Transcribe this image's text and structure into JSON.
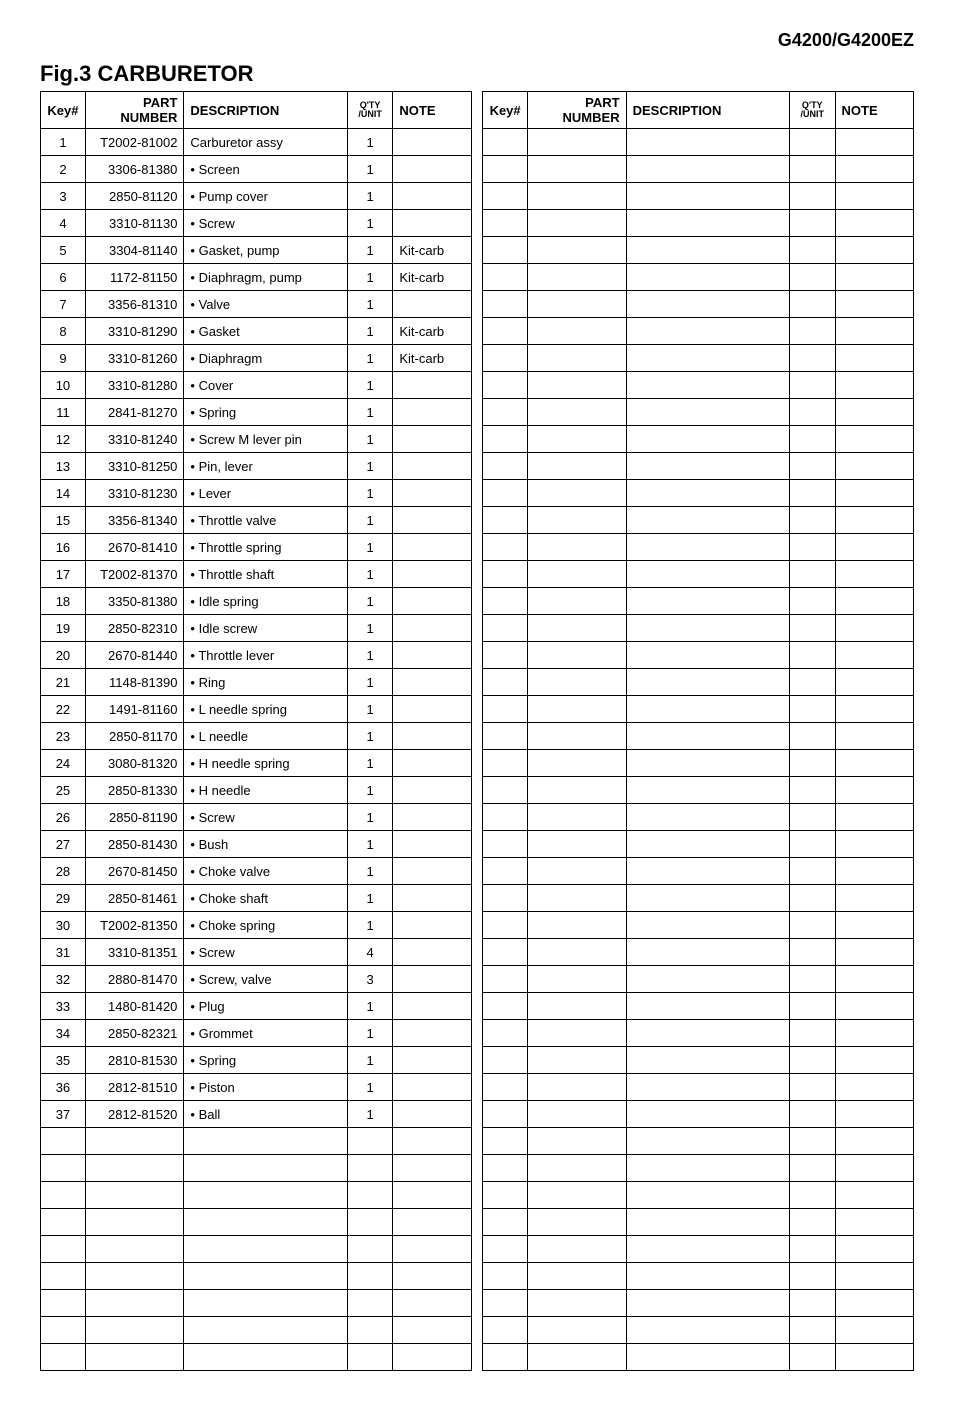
{
  "model": "G4200/G4200EZ",
  "figure_title": "Fig.3  CARBURETOR",
  "headers": {
    "key": "Key#",
    "part": "PART NUMBER",
    "desc": "DESCRIPTION",
    "qty": "Q'TY /UNIT",
    "note": "NOTE"
  },
  "rows": [
    {
      "key": "1",
      "part": "T2002-81002",
      "desc": "Carburetor assy",
      "qty": "1",
      "note": ""
    },
    {
      "key": "2",
      "part": "3306-81380",
      "desc": "• Screen",
      "qty": "1",
      "note": ""
    },
    {
      "key": "3",
      "part": "2850-81120",
      "desc": "• Pump cover",
      "qty": "1",
      "note": ""
    },
    {
      "key": "4",
      "part": "3310-81130",
      "desc": "• Screw",
      "qty": "1",
      "note": ""
    },
    {
      "key": "5",
      "part": "3304-81140",
      "desc": "• Gasket, pump",
      "qty": "1",
      "note": "Kit-carb"
    },
    {
      "key": "6",
      "part": "1172-81150",
      "desc": "• Diaphragm, pump",
      "qty": "1",
      "note": "Kit-carb"
    },
    {
      "key": "7",
      "part": "3356-81310",
      "desc": "• Valve",
      "qty": "1",
      "note": ""
    },
    {
      "key": "8",
      "part": "3310-81290",
      "desc": "• Gasket",
      "qty": "1",
      "note": "Kit-carb"
    },
    {
      "key": "9",
      "part": "3310-81260",
      "desc": "• Diaphragm",
      "qty": "1",
      "note": "Kit-carb"
    },
    {
      "key": "10",
      "part": "3310-81280",
      "desc": "• Cover",
      "qty": "1",
      "note": ""
    },
    {
      "key": "11",
      "part": "2841-81270",
      "desc": "• Spring",
      "qty": "1",
      "note": ""
    },
    {
      "key": "12",
      "part": "3310-81240",
      "desc": "• Screw M lever pin",
      "qty": "1",
      "note": ""
    },
    {
      "key": "13",
      "part": "3310-81250",
      "desc": "• Pin, lever",
      "qty": "1",
      "note": ""
    },
    {
      "key": "14",
      "part": "3310-81230",
      "desc": "• Lever",
      "qty": "1",
      "note": ""
    },
    {
      "key": "15",
      "part": "3356-81340",
      "desc": "• Throttle valve",
      "qty": "1",
      "note": ""
    },
    {
      "key": "16",
      "part": "2670-81410",
      "desc": "• Throttle spring",
      "qty": "1",
      "note": ""
    },
    {
      "key": "17",
      "part": "T2002-81370",
      "desc": "• Throttle shaft",
      "qty": "1",
      "note": ""
    },
    {
      "key": "18",
      "part": "3350-81380",
      "desc": "• Idle spring",
      "qty": "1",
      "note": ""
    },
    {
      "key": "19",
      "part": "2850-82310",
      "desc": "• Idle screw",
      "qty": "1",
      "note": ""
    },
    {
      "key": "20",
      "part": "2670-81440",
      "desc": "• Throttle lever",
      "qty": "1",
      "note": ""
    },
    {
      "key": "21",
      "part": "1148-81390",
      "desc": "• Ring",
      "qty": "1",
      "note": ""
    },
    {
      "key": "22",
      "part": "1491-81160",
      "desc": "• L needle spring",
      "qty": "1",
      "note": ""
    },
    {
      "key": "23",
      "part": "2850-81170",
      "desc": "• L needle",
      "qty": "1",
      "note": ""
    },
    {
      "key": "24",
      "part": "3080-81320",
      "desc": "• H needle spring",
      "qty": "1",
      "note": ""
    },
    {
      "key": "25",
      "part": "2850-81330",
      "desc": "• H needle",
      "qty": "1",
      "note": ""
    },
    {
      "key": "26",
      "part": "2850-81190",
      "desc": "• Screw",
      "qty": "1",
      "note": ""
    },
    {
      "key": "27",
      "part": "2850-81430",
      "desc": "• Bush",
      "qty": "1",
      "note": ""
    },
    {
      "key": "28",
      "part": "2670-81450",
      "desc": "• Choke valve",
      "qty": "1",
      "note": ""
    },
    {
      "key": "29",
      "part": "2850-81461",
      "desc": "• Choke shaft",
      "qty": "1",
      "note": ""
    },
    {
      "key": "30",
      "part": "T2002-81350",
      "desc": "• Choke spring",
      "qty": "1",
      "note": ""
    },
    {
      "key": "31",
      "part": "3310-81351",
      "desc": "• Screw",
      "qty": "4",
      "note": ""
    },
    {
      "key": "32",
      "part": "2880-81470",
      "desc": "• Screw, valve",
      "qty": "3",
      "note": ""
    },
    {
      "key": "33",
      "part": "1480-81420",
      "desc": "• Plug",
      "qty": "1",
      "note": ""
    },
    {
      "key": "34",
      "part": "2850-82321",
      "desc": "• Grommet",
      "qty": "1",
      "note": ""
    },
    {
      "key": "35",
      "part": "2810-81530",
      "desc": "• Spring",
      "qty": "1",
      "note": ""
    },
    {
      "key": "36",
      "part": "2812-81510",
      "desc": "• Piston",
      "qty": "1",
      "note": ""
    },
    {
      "key": "37",
      "part": "2812-81520",
      "desc": "• Ball",
      "qty": "1",
      "note": ""
    }
  ],
  "total_body_rows": 46,
  "style": {
    "background_color": "#ffffff",
    "text_color": "#000000",
    "border_color": "#000000",
    "header_font_size_pt": 18,
    "title_font_size_pt": 22,
    "body_font_size_pt": 13,
    "font_family": "Arial, Helvetica, sans-serif"
  }
}
